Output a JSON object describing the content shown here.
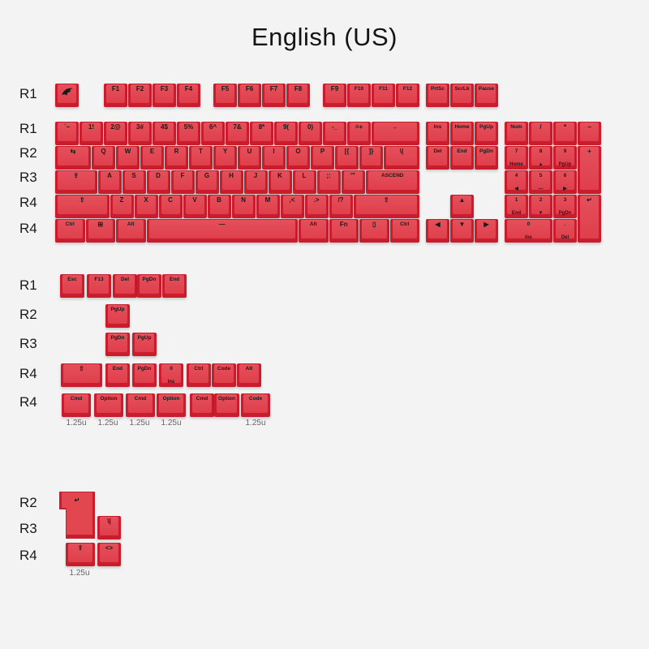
{
  "title": "English (US)",
  "colors": {
    "keycap": "#c91c2c",
    "keycap_face": "#e2434f",
    "background": "#f3f3f3",
    "legend": "#1a1a1a"
  },
  "main_row_labels": [
    "R1",
    "R1",
    "R2",
    "R3",
    "R4",
    "R4"
  ],
  "extra_row_labels": [
    "R1",
    "R2",
    "R3",
    "R4",
    "R4"
  ],
  "iso_row_labels": [
    "R2",
    "R3",
    "R4"
  ],
  "main_keys": {
    "fn_row": [
      {
        "t": "",
        "icon": "logo-icon"
      },
      {
        "t": "F1"
      },
      {
        "t": "F2"
      },
      {
        "t": "F3"
      },
      {
        "t": "F4"
      },
      {
        "t": "F5"
      },
      {
        "t": "F6"
      },
      {
        "t": "F7"
      },
      {
        "t": "F8"
      },
      {
        "t": "F9"
      },
      {
        "t": "F10"
      },
      {
        "t": "F11"
      },
      {
        "t": "F12"
      },
      {
        "t": "PrtSc"
      },
      {
        "t": "ScrLk"
      },
      {
        "t": "Pause"
      }
    ],
    "row1": [
      {
        "t": "`~"
      },
      {
        "t": "1!"
      },
      {
        "t": "2@"
      },
      {
        "t": "3#"
      },
      {
        "t": "4$"
      },
      {
        "t": "5%"
      },
      {
        "t": "6^"
      },
      {
        "t": "7&"
      },
      {
        "t": "8*"
      },
      {
        "t": "9("
      },
      {
        "t": "0)"
      },
      {
        "t": "-_"
      },
      {
        "t": "=+"
      },
      {
        "t": "←"
      },
      {
        "t": "Ins"
      },
      {
        "t": "Home"
      },
      {
        "t": "PgUp"
      },
      {
        "t": "Num"
      },
      {
        "t": "/"
      },
      {
        "t": "*"
      },
      {
        "t": "−"
      }
    ],
    "row2": [
      {
        "t": "⇆"
      },
      {
        "t": "Q"
      },
      {
        "t": "W"
      },
      {
        "t": "E"
      },
      {
        "t": "R"
      },
      {
        "t": "T"
      },
      {
        "t": "Y"
      },
      {
        "t": "U"
      },
      {
        "t": "I"
      },
      {
        "t": "O"
      },
      {
        "t": "P"
      },
      {
        "t": "[{"
      },
      {
        "t": "]}"
      },
      {
        "t": "\\|"
      },
      {
        "t": "Del"
      },
      {
        "t": "End"
      },
      {
        "t": "PgDn"
      },
      {
        "t": "7",
        "s": "Home"
      },
      {
        "t": "8",
        "s": "▲"
      },
      {
        "t": "9",
        "s": "PgUp"
      },
      {
        "t": "+"
      }
    ],
    "row3": [
      {
        "t": "⇪"
      },
      {
        "t": "A"
      },
      {
        "t": "S"
      },
      {
        "t": "D"
      },
      {
        "t": "F"
      },
      {
        "t": "G"
      },
      {
        "t": "H"
      },
      {
        "t": "J"
      },
      {
        "t": "K"
      },
      {
        "t": "L"
      },
      {
        "t": ";:"
      },
      {
        "t": "'\""
      },
      {
        "t": "ASCEND"
      },
      {
        "t": "4",
        "s": "◀"
      },
      {
        "t": "5",
        "s": "—"
      },
      {
        "t": "6",
        "s": "▶"
      }
    ],
    "row4": [
      {
        "t": "⇧"
      },
      {
        "t": "Z"
      },
      {
        "t": "X"
      },
      {
        "t": "C"
      },
      {
        "t": "V"
      },
      {
        "t": "B"
      },
      {
        "t": "N"
      },
      {
        "t": "M"
      },
      {
        "t": ",<"
      },
      {
        "t": ".>"
      },
      {
        "t": "/?"
      },
      {
        "t": "⇧"
      },
      {
        "t": "▲"
      },
      {
        "t": "1",
        "s": "End"
      },
      {
        "t": "2",
        "s": "▼"
      },
      {
        "t": "3",
        "s": "PgDn"
      },
      {
        "t": "↵"
      }
    ],
    "row5": [
      {
        "t": "Ctrl"
      },
      {
        "t": "⊞"
      },
      {
        "t": "Alt"
      },
      {
        "t": "—"
      },
      {
        "t": "Alt"
      },
      {
        "t": "Fn"
      },
      {
        "t": "▯"
      },
      {
        "t": "Ctrl"
      },
      {
        "t": "◀"
      },
      {
        "t": "▼"
      },
      {
        "t": "▶"
      },
      {
        "t": "0",
        "s": "Ins"
      },
      {
        "t": ".",
        "s": "Del"
      }
    ]
  },
  "extra_keys": {
    "r1": [
      {
        "t": "Esc"
      },
      {
        "t": "F13"
      },
      {
        "t": "Del"
      },
      {
        "t": "PgDn"
      },
      {
        "t": "End"
      }
    ],
    "r2": [
      {
        "t": "PgUp"
      }
    ],
    "r3": [
      {
        "t": "PgDn"
      },
      {
        "t": "PgUp"
      }
    ],
    "r4": [
      {
        "t": "⇧"
      },
      {
        "t": "End"
      },
      {
        "t": "PgDn"
      },
      {
        "t": "0",
        "s": "Ins"
      },
      {
        "t": "Ctrl"
      },
      {
        "t": "Code"
      },
      {
        "t": "Alt"
      }
    ],
    "r5": [
      {
        "t": "Cmd"
      },
      {
        "t": "Option"
      },
      {
        "t": "Cmd"
      },
      {
        "t": "Option"
      },
      {
        "t": "Cmd"
      },
      {
        "t": "Option"
      },
      {
        "t": "Code"
      }
    ],
    "size_labels": [
      "1.25u",
      "1.25u",
      "1.25u",
      "1.25u",
      "1.25u"
    ]
  },
  "iso_keys": {
    "enter": {
      "t": "↵"
    },
    "backslash": {
      "t": "\\|"
    },
    "shift": {
      "t": "⇧"
    },
    "angle": {
      "t": "<>"
    },
    "size_label": "1.25u"
  }
}
